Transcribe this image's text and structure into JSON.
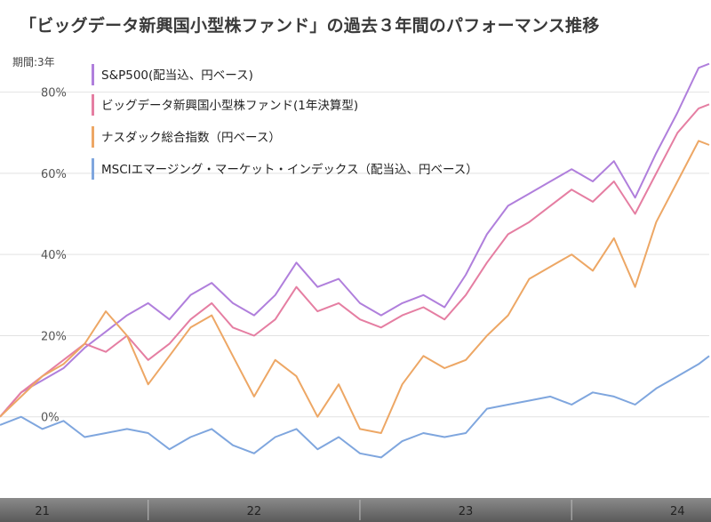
{
  "title": "「ビッグデータ新興国小型株ファンド」の過去３年間のパフォーマンス推移",
  "colors": {
    "sp500": "#b07fdc",
    "bigdata": "#e57ea2",
    "nasdaq": "#eda765",
    "msci": "#7fa6de",
    "gridline": "#e2e2e2",
    "axis_band": "#6a6a6a"
  },
  "chart_data": {
    "type": "line",
    "title": "",
    "period_label": "期間:3年",
    "ylim": [
      -20,
      90
    ],
    "yticks": [
      0,
      20,
      40,
      60,
      80
    ],
    "ytick_labels": [
      "0%",
      "20%",
      "40%",
      "60%",
      "80%"
    ],
    "grid": true,
    "legend_position": "top-left",
    "x_range": [
      2020.8,
      2024.15
    ],
    "xticks": [
      2021.0,
      2022.0,
      2023.0,
      2024.0
    ],
    "xtick_labels": [
      "21",
      "22",
      "23",
      "24"
    ],
    "series": [
      {
        "name": "S&P500(配当込、円ベース)",
        "color_key": "sp500",
        "x": [
          2020.8,
          2020.9,
          2021.0,
          2021.1,
          2021.2,
          2021.3,
          2021.4,
          2021.5,
          2021.6,
          2021.7,
          2021.8,
          2021.9,
          2022.0,
          2022.1,
          2022.2,
          2022.3,
          2022.4,
          2022.5,
          2022.6,
          2022.7,
          2022.8,
          2022.9,
          2023.0,
          2023.1,
          2023.2,
          2023.3,
          2023.4,
          2023.5,
          2023.6,
          2023.7,
          2023.8,
          2023.9,
          2024.0,
          2024.1,
          2024.15
        ],
        "y": [
          0,
          6,
          9,
          12,
          17,
          21,
          25,
          28,
          24,
          30,
          33,
          28,
          25,
          30,
          38,
          32,
          34,
          28,
          25,
          28,
          30,
          27,
          35,
          45,
          52,
          55,
          58,
          61,
          58,
          63,
          54,
          65,
          75,
          86,
          87
        ]
      },
      {
        "name": "ビッグデータ新興国小型株ファンド(1年決算型)",
        "color_key": "bigdata",
        "x": [
          2020.8,
          2020.9,
          2021.0,
          2021.1,
          2021.2,
          2021.3,
          2021.4,
          2021.5,
          2021.6,
          2021.7,
          2021.8,
          2021.9,
          2022.0,
          2022.1,
          2022.2,
          2022.3,
          2022.4,
          2022.5,
          2022.6,
          2022.7,
          2022.8,
          2022.9,
          2023.0,
          2023.1,
          2023.2,
          2023.3,
          2023.4,
          2023.5,
          2023.6,
          2023.7,
          2023.8,
          2023.9,
          2024.0,
          2024.1,
          2024.15
        ],
        "y": [
          0,
          6,
          10,
          14,
          18,
          16,
          20,
          14,
          18,
          24,
          28,
          22,
          20,
          24,
          32,
          26,
          28,
          24,
          22,
          25,
          27,
          24,
          30,
          38,
          45,
          48,
          52,
          56,
          53,
          58,
          50,
          60,
          70,
          76,
          77
        ]
      },
      {
        "name": "ナスダック総合指数（円ベース）",
        "color_key": "nasdaq",
        "x": [
          2020.8,
          2020.9,
          2021.0,
          2021.1,
          2021.2,
          2021.3,
          2021.4,
          2021.5,
          2021.6,
          2021.7,
          2021.8,
          2021.9,
          2022.0,
          2022.1,
          2022.2,
          2022.3,
          2022.4,
          2022.5,
          2022.6,
          2022.7,
          2022.8,
          2022.9,
          2023.0,
          2023.1,
          2023.2,
          2023.3,
          2023.4,
          2023.5,
          2023.6,
          2023.7,
          2023.8,
          2023.9,
          2024.0,
          2024.1,
          2024.15
        ],
        "y": [
          0,
          5,
          10,
          13,
          18,
          26,
          20,
          8,
          15,
          22,
          25,
          15,
          5,
          14,
          10,
          0,
          8,
          -3,
          -4,
          8,
          15,
          12,
          14,
          20,
          25,
          34,
          37,
          40,
          36,
          44,
          32,
          48,
          58,
          68,
          67
        ]
      },
      {
        "name": "MSCIエマージング・マーケット・インデックス（配当込、円ベース）",
        "color_key": "msci",
        "x": [
          2020.8,
          2020.9,
          2021.0,
          2021.1,
          2021.2,
          2021.3,
          2021.4,
          2021.5,
          2021.6,
          2021.7,
          2021.8,
          2021.9,
          2022.0,
          2022.1,
          2022.2,
          2022.3,
          2022.4,
          2022.5,
          2022.6,
          2022.7,
          2022.8,
          2022.9,
          2023.0,
          2023.1,
          2023.2,
          2023.3,
          2023.4,
          2023.5,
          2023.6,
          2023.7,
          2023.8,
          2023.9,
          2024.0,
          2024.1,
          2024.15
        ],
        "y": [
          -2,
          0,
          -3,
          -1,
          -5,
          -4,
          -3,
          -4,
          -8,
          -5,
          -3,
          -7,
          -9,
          -5,
          -3,
          -8,
          -5,
          -9,
          -10,
          -6,
          -4,
          -5,
          -4,
          2,
          3,
          4,
          5,
          3,
          6,
          5,
          3,
          7,
          10,
          13,
          15
        ]
      }
    ]
  }
}
